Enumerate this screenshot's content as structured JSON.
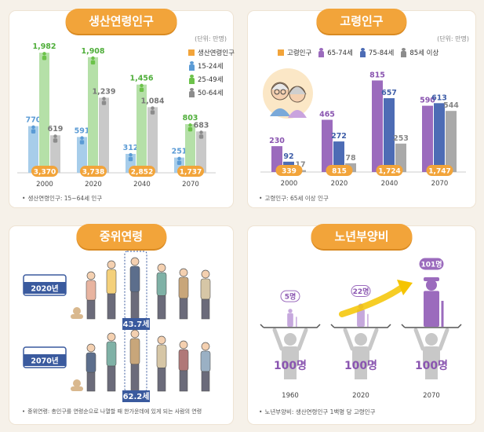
{
  "panels": {
    "working_age": {
      "title": "생산연령인구",
      "unit": "(단위: 만명)",
      "footnote": "생산연령인구: 15~64세 인구"
    },
    "elderly": {
      "title": "고령인구",
      "unit": "(단위: 만명)",
      "footnote": "고령인구: 65세 이상 인구"
    },
    "median_age": {
      "title": "중위연령",
      "footnote": "중위연령: 총인구를 연령순으로 나열할 때 한가운데에 있게 되는 사람의 연령"
    },
    "dependency": {
      "title": "노년부양비",
      "footnote": "노년부양비: 생산연령인구 1백명 당 고령인구"
    }
  },
  "chart_data": [
    {
      "type": "bar",
      "title": "생산연령인구",
      "categories": [
        "2000",
        "2020",
        "2040",
        "2070"
      ],
      "legend": [
        "생산연령인구",
        "15-24세",
        "25-49세",
        "50-64세"
      ],
      "total_labels": [
        "3,370",
        "3,738",
        "2,852",
        "1,737"
      ],
      "series": [
        {
          "name": "15-24세",
          "values": [
            770,
            591,
            312,
            251
          ],
          "labels": [
            "770",
            "591",
            "312",
            "251"
          ],
          "color": "#a7cdea"
        },
        {
          "name": "25-49세",
          "values": [
            1982,
            1908,
            1456,
            803
          ],
          "labels": [
            "1,982",
            "1,908",
            "1,456",
            "803"
          ],
          "color": "#b5e0a8"
        },
        {
          "name": "50-64세",
          "values": [
            619,
            1239,
            1084,
            683
          ],
          "labels": [
            "619",
            "1,239",
            "1,084",
            "683"
          ],
          "color": "#c9c9c9"
        }
      ],
      "ylim": [
        0,
        2100
      ]
    },
    {
      "type": "bar",
      "title": "고령인구",
      "categories": [
        "2000",
        "2020",
        "2040",
        "2070"
      ],
      "legend": [
        "고령인구",
        "65-74세",
        "75-84세",
        "85세 이상"
      ],
      "total_labels": [
        "339",
        "815",
        "1,724",
        "1,747"
      ],
      "series": [
        {
          "name": "65-74세",
          "values": [
            230,
            465,
            815,
            590
          ],
          "labels": [
            "230",
            "465",
            "815",
            "590"
          ],
          "color": "#9b6bbd"
        },
        {
          "name": "75-84세",
          "values": [
            92,
            272,
            657,
            613
          ],
          "labels": [
            "92",
            "272",
            "657",
            "613"
          ],
          "color": "#4d6cb5"
        },
        {
          "name": "85세 이상",
          "values": [
            17,
            78,
            253,
            544
          ],
          "labels": [
            "17",
            "78",
            "253",
            "544"
          ],
          "color": "#a9a9a9"
        }
      ],
      "ylim": [
        0,
        860
      ]
    }
  ],
  "median_age": {
    "rows": [
      {
        "year": "2020년",
        "value": "43.7세"
      },
      {
        "year": "2070년",
        "value": "62.2세"
      }
    ]
  },
  "dependency": {
    "items": [
      {
        "year": "1960",
        "elder": "5명",
        "base": "100명",
        "ratio": 5
      },
      {
        "year": "2020",
        "elder": "22명",
        "base": "100명",
        "ratio": 22
      },
      {
        "year": "2070",
        "elder": "101명",
        "base": "100명",
        "ratio": 101
      }
    ]
  },
  "colors": {
    "accent": "#f2a43a",
    "total_badge": "#f2a43a",
    "purple": "#9b6bbd",
    "light_purple": "#c6a8dd",
    "gray_person": "#c8c8c8",
    "arrow": "#f5c400"
  },
  "icons": [
    "person-icon",
    "elderly-couple-illustration",
    "calendar-icon",
    "elderly-with-cane-icon"
  ]
}
